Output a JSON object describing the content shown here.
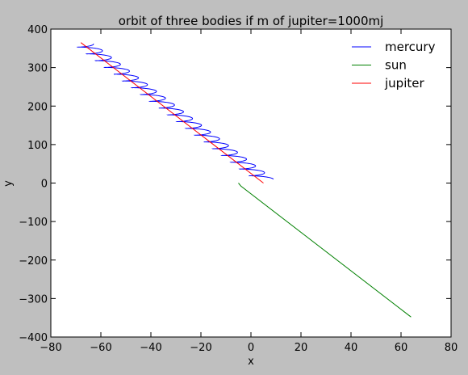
{
  "chart_data": {
    "type": "line",
    "title": "orbit of three bodies if m of jupiter=1000mj",
    "xlabel": "x",
    "ylabel": "y",
    "xlim": [
      -80,
      80
    ],
    "ylim": [
      -400,
      400
    ],
    "xticks": [
      "−80",
      "−60",
      "−40",
      "−20",
      "0",
      "20",
      "40",
      "60",
      "80"
    ],
    "yticks": [
      "−400",
      "−300",
      "−200",
      "−100",
      "0",
      "100",
      "200",
      "300",
      "400"
    ],
    "legend_position": "top-right",
    "grid": false,
    "series": [
      {
        "name": "mercury",
        "color": "#0000ff",
        "style": "loops",
        "start": [
          5,
          10
        ],
        "end": [
          -67,
          362
        ],
        "loops": 20,
        "loop_radius": [
          4,
          3
        ]
      },
      {
        "name": "sun",
        "color": "#008000",
        "style": "line",
        "x": [
          -5,
          -4,
          64
        ],
        "y": [
          0,
          -8,
          -348
        ]
      },
      {
        "name": "jupiter",
        "color": "#ff0000",
        "style": "line",
        "x": [
          5,
          -68
        ],
        "y": [
          0,
          365
        ]
      }
    ]
  }
}
